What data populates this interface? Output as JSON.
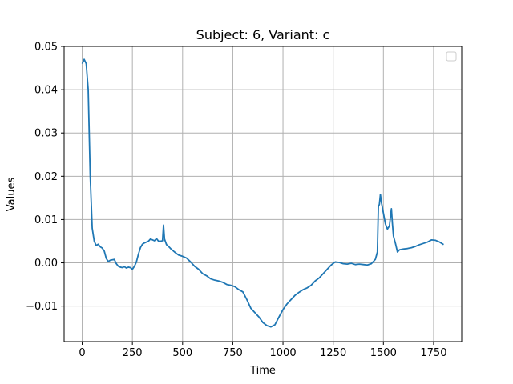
{
  "chart_data": {
    "type": "line",
    "title": "Subject: 6, Variant: c",
    "xlabel": "Time",
    "ylabel": "Values",
    "xlim": [
      -90,
      1890
    ],
    "ylim": [
      -0.0182,
      0.05
    ],
    "xticks": [
      0,
      250,
      500,
      750,
      1000,
      1250,
      1500,
      1750
    ],
    "xtick_labels": [
      "0",
      "250",
      "500",
      "750",
      "1000",
      "1250",
      "1500",
      "1750"
    ],
    "yticks": [
      -0.01,
      0.0,
      0.01,
      0.02,
      0.03,
      0.04,
      0.05
    ],
    "ytick_labels": [
      "−0.01",
      "0.00",
      "0.01",
      "0.02",
      "0.03",
      "0.04",
      "0.05"
    ],
    "grid": true,
    "legend": "top-right (empty)",
    "line_color": "#1f77b4",
    "series": [
      {
        "x": [
          0,
          10,
          20,
          30,
          40,
          50,
          60,
          70,
          80,
          90,
          100,
          110,
          120,
          130,
          140,
          150,
          160,
          170,
          180,
          190,
          200,
          210,
          220,
          230,
          240,
          250,
          260,
          270,
          280,
          290,
          300,
          310,
          320,
          330,
          340,
          350,
          360,
          370,
          380,
          390,
          400,
          405,
          410,
          420,
          430,
          440,
          460,
          480,
          500,
          520,
          540,
          560,
          580,
          600,
          620,
          640,
          660,
          680,
          700,
          720,
          740,
          760,
          780,
          800,
          820,
          840,
          860,
          880,
          900,
          920,
          940,
          960,
          980,
          1000,
          1020,
          1040,
          1060,
          1080,
          1100,
          1120,
          1140,
          1160,
          1180,
          1200,
          1220,
          1240,
          1260,
          1280,
          1300,
          1320,
          1340,
          1360,
          1380,
          1400,
          1420,
          1440,
          1460,
          1470,
          1475,
          1480,
          1485,
          1490,
          1500,
          1510,
          1520,
          1530,
          1540,
          1545,
          1550,
          1560,
          1570,
          1580,
          1600,
          1620,
          1640,
          1660,
          1680,
          1700,
          1720,
          1740,
          1760,
          1780,
          1800
        ],
        "y": [
          0.046,
          0.047,
          0.046,
          0.04,
          0.02,
          0.008,
          0.005,
          0.004,
          0.0043,
          0.0037,
          0.0034,
          0.0027,
          0.001,
          0.0003,
          0.0006,
          0.0007,
          0.0008,
          -0.0002,
          -0.0008,
          -0.001,
          -0.0011,
          -0.0009,
          -0.0012,
          -0.001,
          -0.0011,
          -0.0015,
          -0.0008,
          0.0002,
          0.002,
          0.0035,
          0.0043,
          0.0046,
          0.0048,
          0.005,
          0.0055,
          0.0053,
          0.0051,
          0.0056,
          0.005,
          0.005,
          0.0051,
          0.0087,
          0.0055,
          0.0042,
          0.0038,
          0.0033,
          0.0025,
          0.0018,
          0.0015,
          0.0011,
          0.0002,
          -0.0008,
          -0.0015,
          -0.0025,
          -0.003,
          -0.0037,
          -0.004,
          -0.0042,
          -0.0045,
          -0.005,
          -0.0052,
          -0.0055,
          -0.0062,
          -0.0067,
          -0.0085,
          -0.0105,
          -0.0115,
          -0.0125,
          -0.0138,
          -0.0145,
          -0.0148,
          -0.0143,
          -0.0125,
          -0.0108,
          -0.0095,
          -0.0085,
          -0.0075,
          -0.0068,
          -0.0062,
          -0.0058,
          -0.0052,
          -0.0042,
          -0.0035,
          -0.0025,
          -0.0015,
          -0.0005,
          0.0002,
          0.0001,
          -0.0002,
          -0.0003,
          -0.0001,
          -0.0004,
          -0.0003,
          -0.0004,
          -0.0005,
          -0.0002,
          0.0008,
          0.0025,
          0.013,
          0.0135,
          0.0158,
          0.014,
          0.0115,
          0.009,
          0.0078,
          0.0085,
          0.0125,
          0.009,
          0.0062,
          0.0045,
          0.0025,
          0.003,
          0.0032,
          0.0033,
          0.0035,
          0.0038,
          0.0042,
          0.0045,
          0.0048,
          0.0053,
          0.0052,
          0.0048,
          0.0042
        ]
      }
    ]
  }
}
